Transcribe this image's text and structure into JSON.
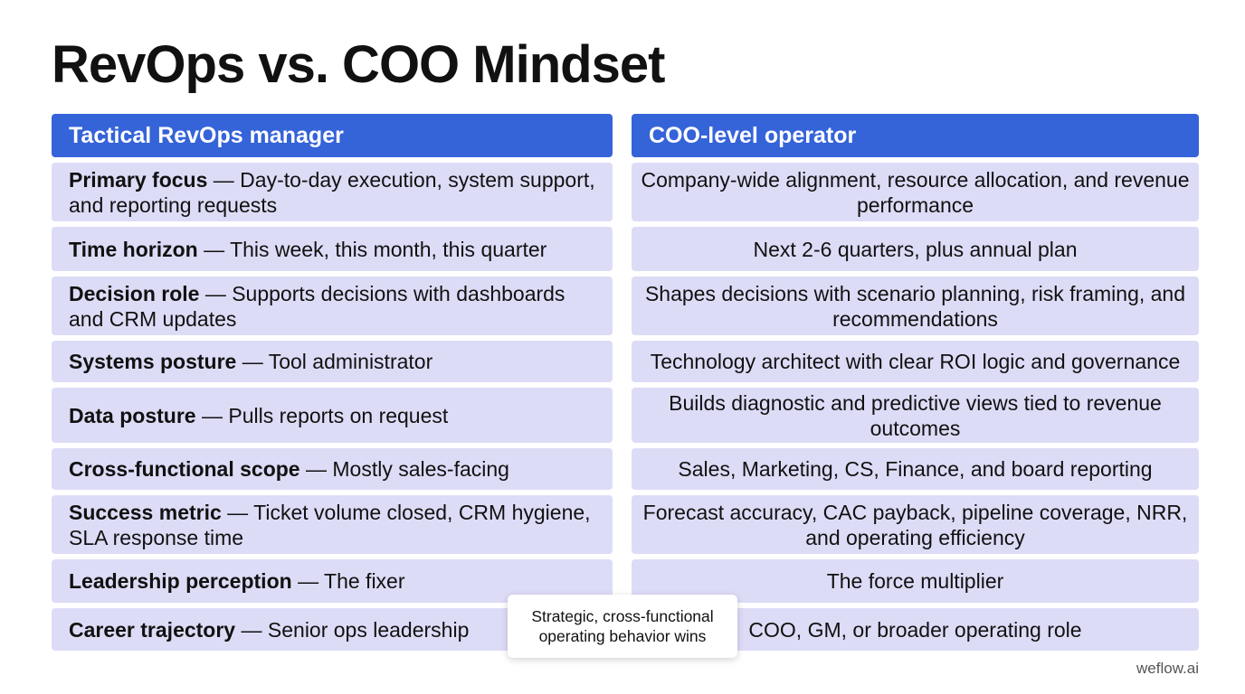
{
  "title": "RevOps vs. COO Mindset",
  "columns": [
    {
      "header": "Tactical RevOps manager",
      "rows": [
        {
          "label": "Primary focus",
          "text": "— Day-to-day execution, system support, and reporting requests"
        },
        {
          "label": "Time horizon",
          "text": "— This week, this month, this quarter"
        },
        {
          "label": "Decision role",
          "text": "— Supports decisions with dashboards and CRM updates"
        },
        {
          "label": "Systems posture",
          "text": "— Tool administrator"
        },
        {
          "label": "Data posture",
          "text": "— Pulls reports on request"
        },
        {
          "label": "Cross-functional scope",
          "text": "— Mostly sales-facing"
        },
        {
          "label": "Success metric",
          "text": "— Ticket volume closed, CRM hygiene, SLA response time"
        },
        {
          "label": "Leadership perception",
          "text": "— The fixer"
        },
        {
          "label": "Career trajectory",
          "text": "— Senior ops leadership"
        }
      ]
    },
    {
      "header": "COO-level operator",
      "rows": [
        "Company-wide alignment, resource allocation, and revenue performance",
        "Next 2-6 quarters, plus annual plan",
        "Shapes decisions with scenario planning, risk framing, and recommendations",
        "Technology architect with clear ROI logic and governance",
        "Builds diagnostic and predictive views tied to revenue outcomes",
        "Sales, Marketing, CS, Finance, and board reporting",
        "Forecast accuracy, CAC payback, pipeline coverage, NRR, and operating efficiency",
        "The force multiplier",
        "COO, GM, or broader operating role"
      ]
    }
  ],
  "callout": "Strategic, cross-functional operating behavior wins",
  "brand": "weflow.ai"
}
